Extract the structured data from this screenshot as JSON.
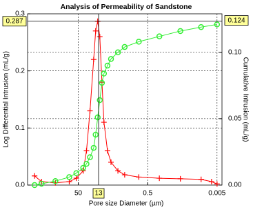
{
  "chart_data": {
    "type": "line",
    "title": "Analysis of Permeability of Sandstone",
    "x_label": "Pore size Diameter (µm)",
    "y_label": "Log Differential Intrusion (mL/g)",
    "y2_label": "Cumulative Intrusion (mL/g)",
    "log_x": true,
    "xlim": [
      1450,
      0.0036
    ],
    "xticks": [
      50,
      0.5,
      0.005
    ],
    "ylim": [
      0,
      0.3
    ],
    "yticks": [
      {
        "value": 0,
        "label": "0.0"
      },
      0.1,
      0.2,
      0.3
    ],
    "y2lim": [
      0,
      0.129
    ],
    "y2ticks": [
      {
        "value": 0,
        "label": "0.00"
      },
      0.05,
      {
        "value": 0.1,
        "label": "0.10"
      }
    ],
    "grid": true,
    "cursor": {
      "x": 13,
      "y": 0.287,
      "y2": 0.124
    },
    "series": [
      {
        "name": "Log Differential Intrusion",
        "color": "#ff0000",
        "marker": "plus",
        "x": [
          910,
          574,
          229,
          91,
          57,
          36,
          29,
          23,
          18,
          15.8,
          13.8,
          12,
          10.4,
          9.1,
          7.2,
          5.7,
          3.6,
          2.3,
          0.9,
          0.23,
          0.057,
          0.0144,
          0.0072,
          0.005
        ],
        "values": [
          0.016,
          0.006,
          0.004,
          0.006,
          0.012,
          0.025,
          0.06,
          0.13,
          0.22,
          0.27,
          0.287,
          0.26,
          0.18,
          0.11,
          0.06,
          0.04,
          0.025,
          0.018,
          0.014,
          0.012,
          0.011,
          0.01,
          0.006,
          0.002
        ]
      },
      {
        "name": "Cumulative Intrusion",
        "color": "#33ee33",
        "marker": "circle",
        "axis": "y2",
        "x": [
          910,
          574,
          229,
          91,
          57,
          36,
          29,
          23,
          18,
          15.8,
          13.8,
          12,
          10.4,
          9.1,
          7.2,
          5.7,
          3.6,
          2.3,
          0.9,
          0.23,
          0.057,
          0.0144,
          0.005
        ],
        "values": [
          0,
          0.001,
          0.003,
          0.006,
          0.009,
          0.013,
          0.016,
          0.021,
          0.028,
          0.038,
          0.051,
          0.064,
          0.077,
          0.084,
          0.09,
          0.095,
          0.1,
          0.104,
          0.108,
          0.112,
          0.116,
          0.119,
          0.121
        ]
      }
    ]
  }
}
